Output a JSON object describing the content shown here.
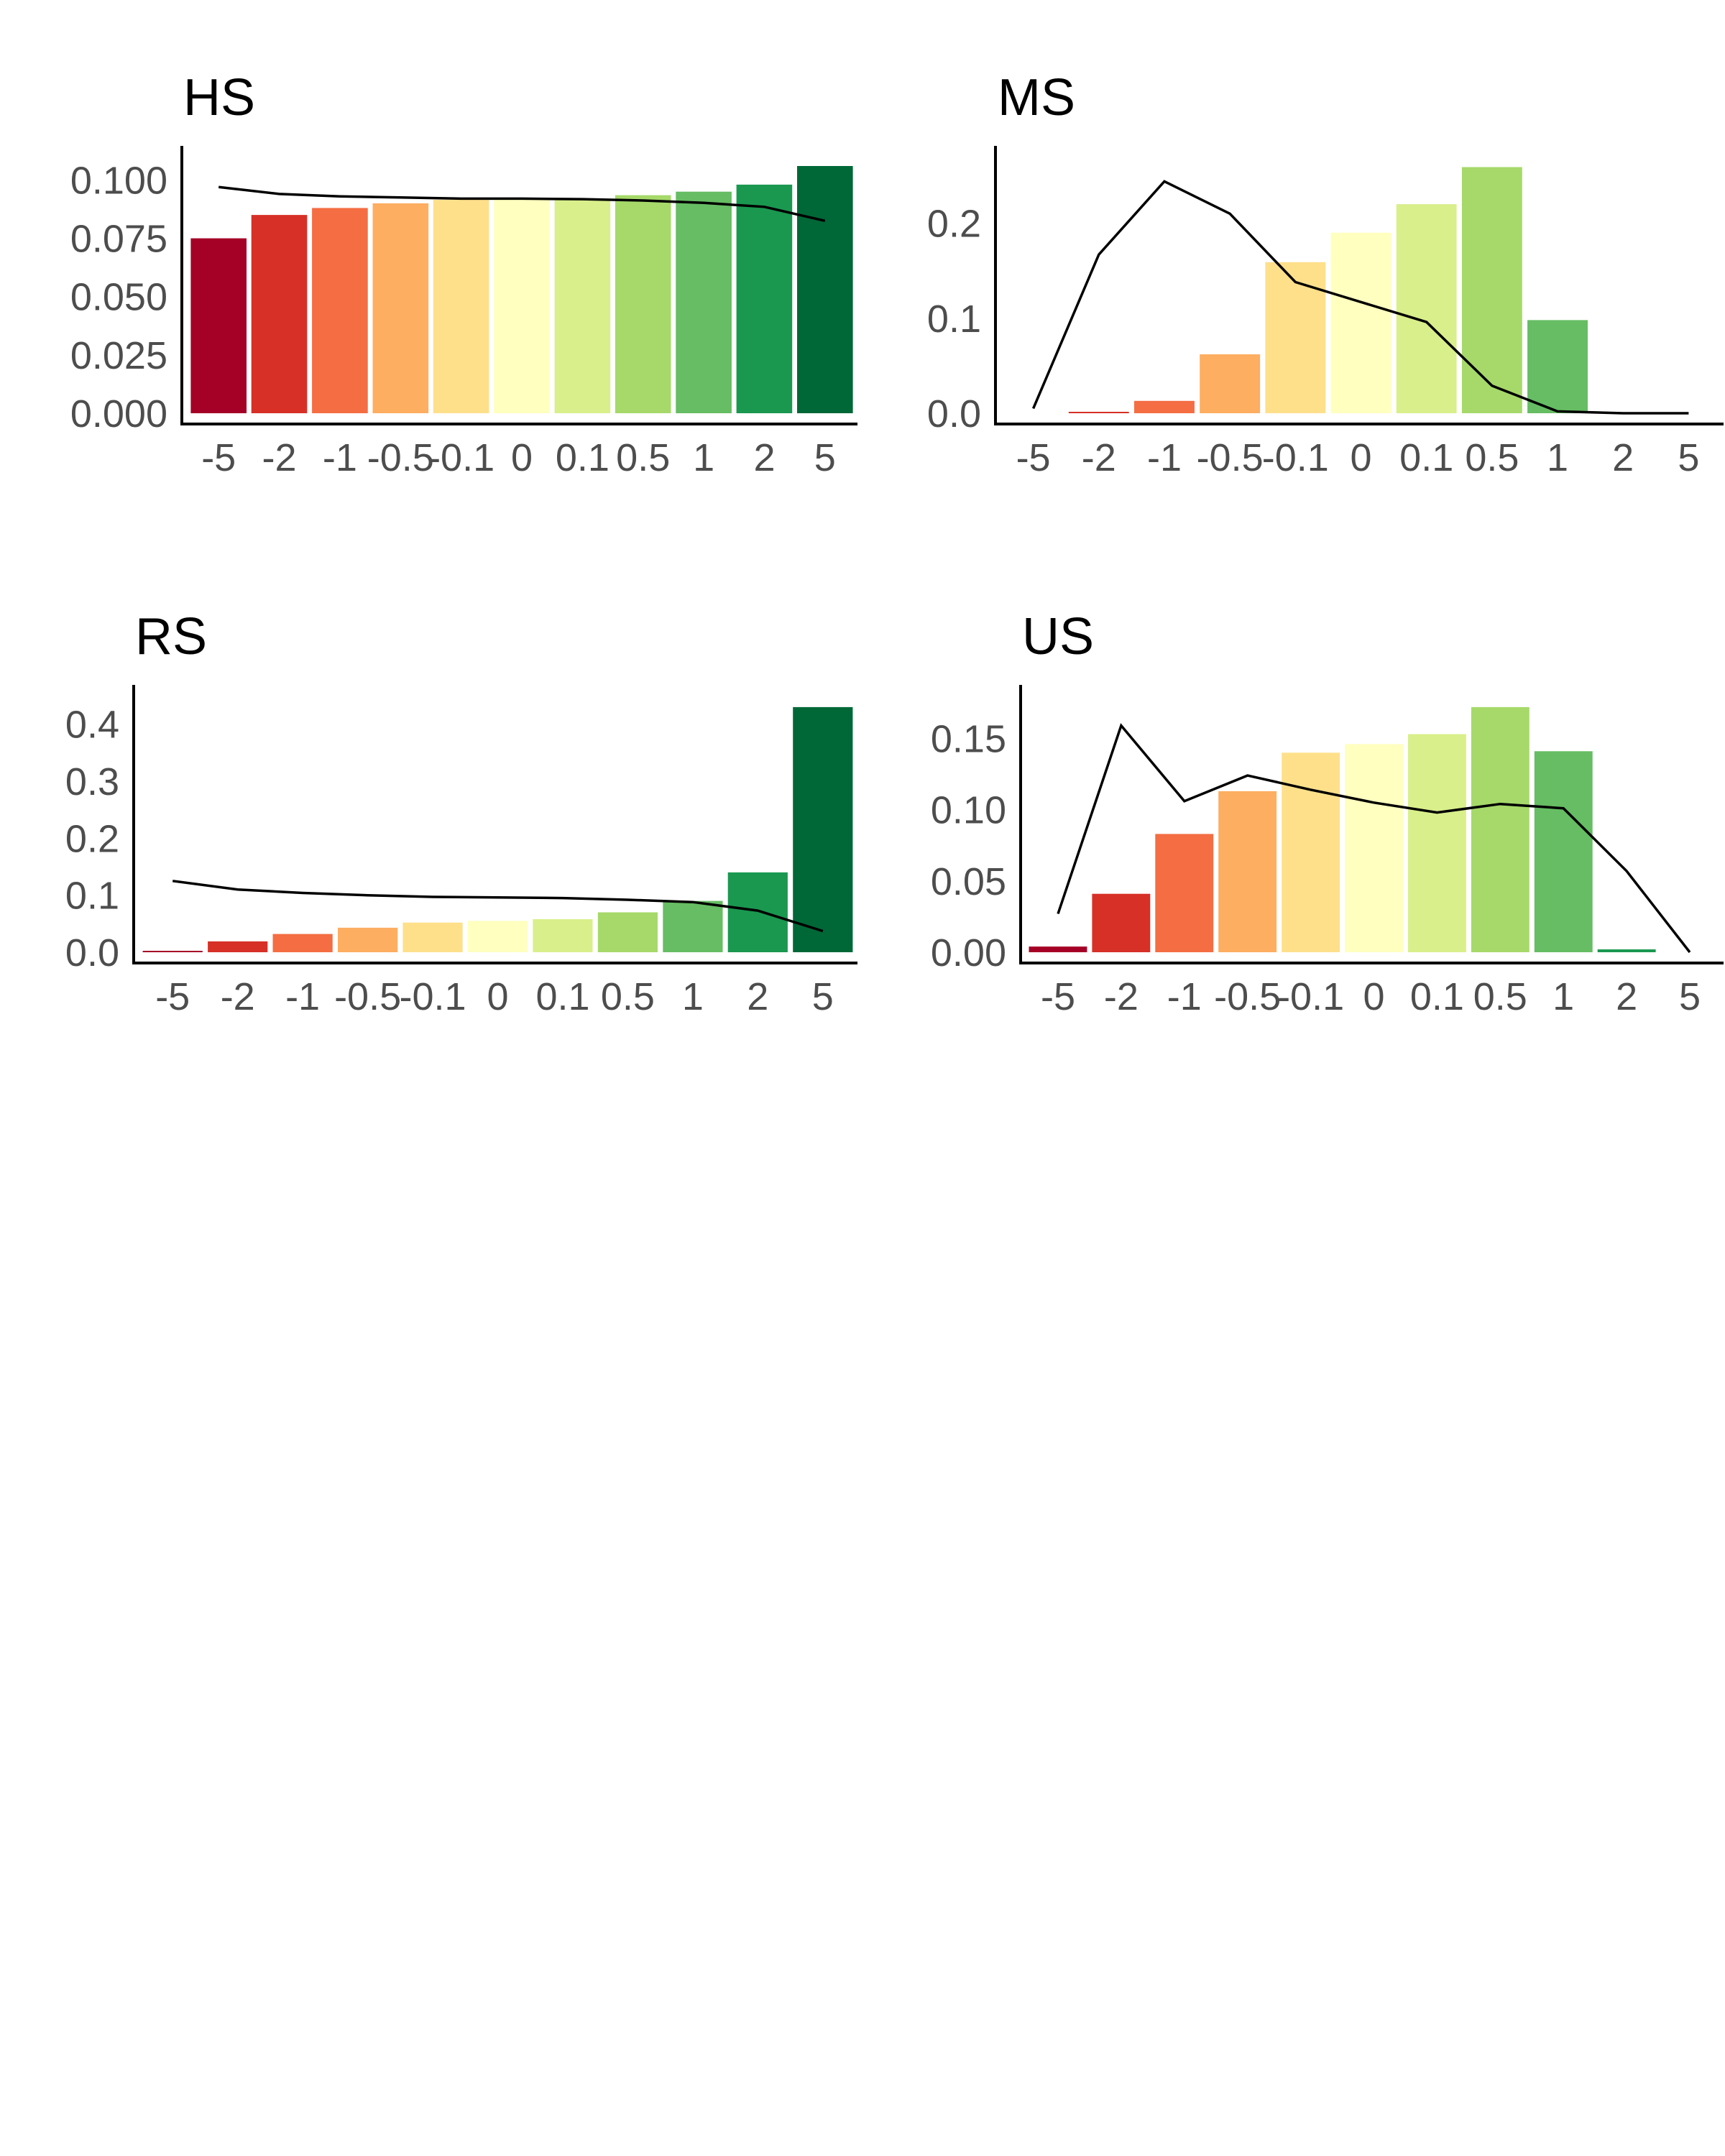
{
  "chart_data": [
    {
      "type": "bar",
      "title": "HS",
      "categories": [
        "-5",
        "-2",
        "-1",
        "-0.5",
        "-0.1",
        "0",
        "0.1",
        "0.5",
        "1",
        "2",
        "5"
      ],
      "values": [
        0.075,
        0.085,
        0.088,
        0.09,
        0.0915,
        0.0915,
        0.092,
        0.0935,
        0.095,
        0.098,
        0.106
      ],
      "line_values": [
        0.097,
        0.094,
        0.093,
        0.0925,
        0.092,
        0.092,
        0.0918,
        0.0912,
        0.0902,
        0.0885,
        0.0825
      ],
      "ylim": [
        0,
        0.11
      ],
      "yticks": [
        "0.000",
        "0.025",
        "0.050",
        "0.075",
        "0.100"
      ],
      "ytick_values": [
        0,
        0.025,
        0.05,
        0.075,
        0.1
      ]
    },
    {
      "type": "bar",
      "title": "MS",
      "categories": [
        "-5",
        "-2",
        "-1",
        "-0.5",
        "-0.1",
        "0",
        "0.1",
        "0.5",
        "1",
        "2",
        "5"
      ],
      "values": [
        0,
        0.001,
        0.013,
        0.062,
        0.159,
        0.19,
        0.22,
        0.259,
        0.098,
        0,
        0
      ],
      "line_values": [
        0.005,
        0.167,
        0.244,
        0.21,
        0.138,
        0.117,
        0.096,
        0.029,
        0.002,
        0,
        0
      ],
      "ylim": [
        0,
        0.27
      ],
      "yticks": [
        "0.0",
        "0.1",
        "0.2"
      ],
      "ytick_values": [
        0,
        0.1,
        0.2
      ]
    },
    {
      "type": "bar",
      "title": "RS",
      "categories": [
        "-5",
        "-2",
        "-1",
        "-0.5",
        "-0.1",
        "0",
        "0.1",
        "0.5",
        "1",
        "2",
        "5"
      ],
      "values": [
        0.002,
        0.019,
        0.032,
        0.043,
        0.052,
        0.055,
        0.058,
        0.07,
        0.09,
        0.14,
        0.43
      ],
      "line_values": [
        0.125,
        0.11,
        0.104,
        0.1,
        0.097,
        0.096,
        0.095,
        0.092,
        0.088,
        0.073,
        0.037
      ],
      "ylim": [
        0,
        0.45
      ],
      "yticks": [
        "0.0",
        "0.1",
        "0.2",
        "0.3",
        "0.4"
      ],
      "ytick_values": [
        0,
        0.1,
        0.2,
        0.3,
        0.4
      ]
    },
    {
      "type": "bar",
      "title": "US",
      "categories": [
        "-5",
        "-2",
        "-1",
        "-0.5",
        "-0.1",
        "0",
        "0.1",
        "0.5",
        "1",
        "2",
        "5"
      ],
      "values": [
        0.004,
        0.041,
        0.083,
        0.113,
        0.14,
        0.146,
        0.153,
        0.172,
        0.141,
        0.002,
        0
      ],
      "line_values": [
        0.027,
        0.159,
        0.106,
        0.124,
        0.114,
        0.105,
        0.098,
        0.104,
        0.101,
        0.057,
        0
      ],
      "ylim": [
        0,
        0.18
      ],
      "yticks": [
        "0.00",
        "0.05",
        "0.10",
        "0.15"
      ],
      "ytick_values": [
        0,
        0.05,
        0.1,
        0.15
      ]
    }
  ],
  "colors": [
    "#a50026",
    "#d73027",
    "#f46d43",
    "#fdae61",
    "#fee08b",
    "#ffffbf",
    "#d9ef8b",
    "#a6d96a",
    "#66bd63",
    "#1a9850",
    "#006837"
  ]
}
